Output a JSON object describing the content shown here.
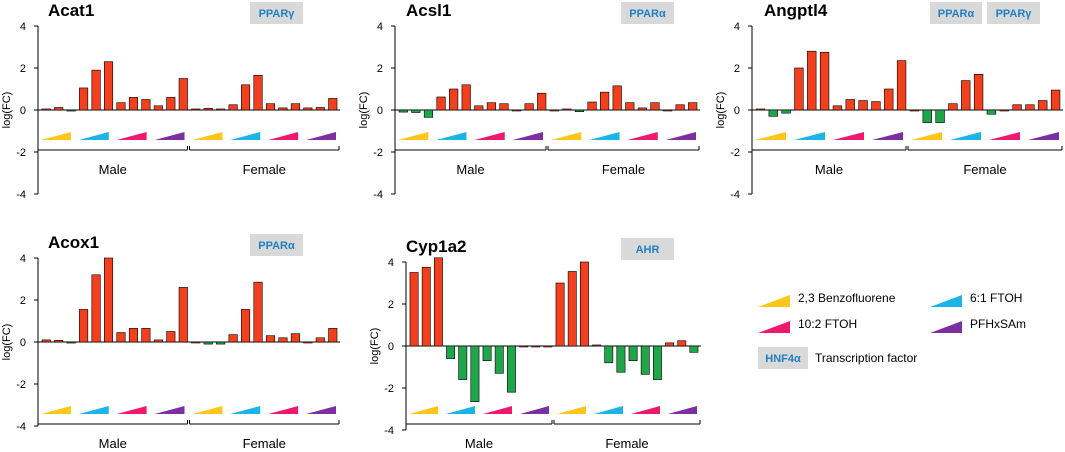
{
  "colors": {
    "up": "#f2401f",
    "down": "#1fa64a",
    "tf_box": "#d9d9d9",
    "tf_text": "#1f7fc2",
    "treatments": [
      "#ffc61a",
      "#1ab4e6",
      "#f0186e",
      "#7b2fa0"
    ]
  },
  "legend": {
    "treatments": [
      "2,3 Benzofluorene",
      "6:1 FTOH",
      "10:2 FTOH",
      "PFHxSAm"
    ],
    "tf_box": "HNF4α",
    "tf_label": "Transcription factor"
  },
  "chart_data": [
    {
      "type": "bar",
      "title": "Acat1",
      "tf": [
        "PPARγ"
      ],
      "ylabel": "log(FC)",
      "ylim": [
        -4,
        4
      ],
      "yticks": [
        "4",
        "2",
        "0",
        "-2",
        "-4"
      ],
      "groups": [
        "Male",
        "Female"
      ],
      "values": [
        0.05,
        0.12,
        -0.05,
        1.05,
        1.9,
        2.3,
        0.35,
        0.6,
        0.5,
        0.2,
        0.6,
        1.5,
        0.05,
        0.08,
        0.05,
        0.25,
        1.2,
        1.65,
        0.3,
        0.1,
        0.3,
        0.1,
        0.12,
        0.55
      ]
    },
    {
      "type": "bar",
      "title": "Acsl1",
      "tf": [
        "PPARα"
      ],
      "ylabel": "log(FC)",
      "ylim": [
        -4,
        4
      ],
      "yticks": [
        "4",
        "2",
        "0",
        "-2",
        "-4"
      ],
      "groups": [
        "Male",
        "Female"
      ],
      "values": [
        -0.1,
        -0.12,
        -0.35,
        0.62,
        1.0,
        1.2,
        0.2,
        0.35,
        0.3,
        0.0,
        0.3,
        0.8,
        0.0,
        0.05,
        -0.08,
        0.38,
        0.85,
        1.15,
        0.35,
        0.1,
        0.35,
        0.0,
        0.25,
        0.35
      ]
    },
    {
      "type": "bar",
      "title": "Angptl4",
      "tf": [
        "PPARα",
        "PPARγ"
      ],
      "ylabel": "log(FC)",
      "ylim": [
        -4,
        4
      ],
      "yticks": [
        "4",
        "2",
        "0",
        "-2",
        "-4"
      ],
      "groups": [
        "Male",
        "Female"
      ],
      "values": [
        0.05,
        -0.3,
        -0.15,
        2.0,
        2.8,
        2.75,
        0.2,
        0.5,
        0.45,
        0.4,
        1.0,
        2.35,
        0.0,
        -0.6,
        -0.6,
        0.3,
        1.4,
        1.7,
        -0.2,
        0.0,
        0.25,
        0.25,
        0.45,
        0.95
      ]
    },
    {
      "type": "bar",
      "title": "Acox1",
      "tf": [
        "PPARα"
      ],
      "ylabel": "log(FC)",
      "ylim": [
        -4,
        4
      ],
      "yticks": [
        "4",
        "2",
        "0",
        "-2",
        "-4"
      ],
      "groups": [
        "Male",
        "Female"
      ],
      "values": [
        0.1,
        0.08,
        -0.05,
        1.55,
        3.2,
        4.0,
        0.45,
        0.65,
        0.65,
        0.1,
        0.5,
        2.6,
        0.0,
        -0.1,
        -0.1,
        0.35,
        1.55,
        2.85,
        0.3,
        0.2,
        0.4,
        0.0,
        0.2,
        0.65
      ]
    },
    {
      "type": "bar",
      "title": "Cyp1a2",
      "tf": [
        "AHR"
      ],
      "ylabel": "log(FC)",
      "ylim": [
        -4,
        4.5
      ],
      "yticks": [
        "4",
        "2",
        "0",
        "-2",
        "-4"
      ],
      "groups": [
        "Male",
        "Female"
      ],
      "values": [
        3.5,
        3.75,
        4.2,
        -0.6,
        -1.6,
        -2.65,
        -0.7,
        -1.3,
        -2.2,
        0.0,
        0.0,
        0.0,
        3.0,
        3.55,
        4.0,
        0.05,
        -0.8,
        -1.25,
        -0.7,
        -1.35,
        -1.6,
        0.15,
        0.25,
        -0.3
      ]
    }
  ]
}
